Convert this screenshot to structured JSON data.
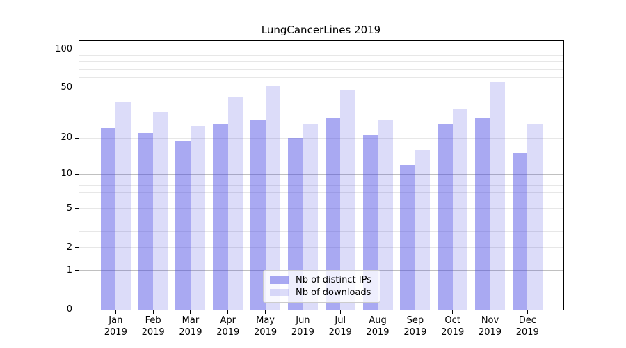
{
  "chart_data": {
    "type": "bar",
    "title": "LungCancerLines 2019",
    "categories": [
      "Jan",
      "Feb",
      "Mar",
      "Apr",
      "May",
      "Jun",
      "Jul",
      "Aug",
      "Sep",
      "Oct",
      "Nov",
      "Dec"
    ],
    "x_sublabel": "2019",
    "series": [
      {
        "name": "Nb of distinct IPs",
        "color": "#a9a9f2",
        "values": [
          24,
          22,
          19,
          26,
          28,
          20,
          29,
          21,
          12,
          26,
          29,
          15
        ]
      },
      {
        "name": "Nb of downloads",
        "color": "#dcdcf9",
        "values": [
          39,
          32,
          25,
          42,
          51,
          26,
          48,
          28,
          16,
          34,
          55,
          26
        ]
      }
    ],
    "yscale": "log1p (position proportional to log10(value+1))",
    "yticks": [
      0,
      1,
      2,
      5,
      10,
      20,
      50,
      100
    ],
    "ytick_labels": [
      "0",
      "1",
      "2",
      "5",
      "10",
      "20",
      "50",
      "100"
    ],
    "major_gridlines": [
      1,
      10,
      100
    ],
    "minor_gridlines": [
      2,
      3,
      4,
      5,
      6,
      7,
      8,
      9,
      20,
      30,
      40,
      50,
      60,
      70,
      80,
      90
    ],
    "ylim": [
      0,
      117
    ],
    "grid": true,
    "legend": {
      "position": "bottom-center",
      "entries": [
        "Nb of distinct IPs",
        "Nb of downloads"
      ],
      "background": "#ffffff",
      "border_color": "#cccccc"
    },
    "colors": {
      "bar_distinct_ips": "#a9a9f2",
      "bar_downloads": "#dcdcf9",
      "text": "#000000",
      "grid_major": "#c0c0c0",
      "grid_minor": "#e7e7e7"
    }
  }
}
